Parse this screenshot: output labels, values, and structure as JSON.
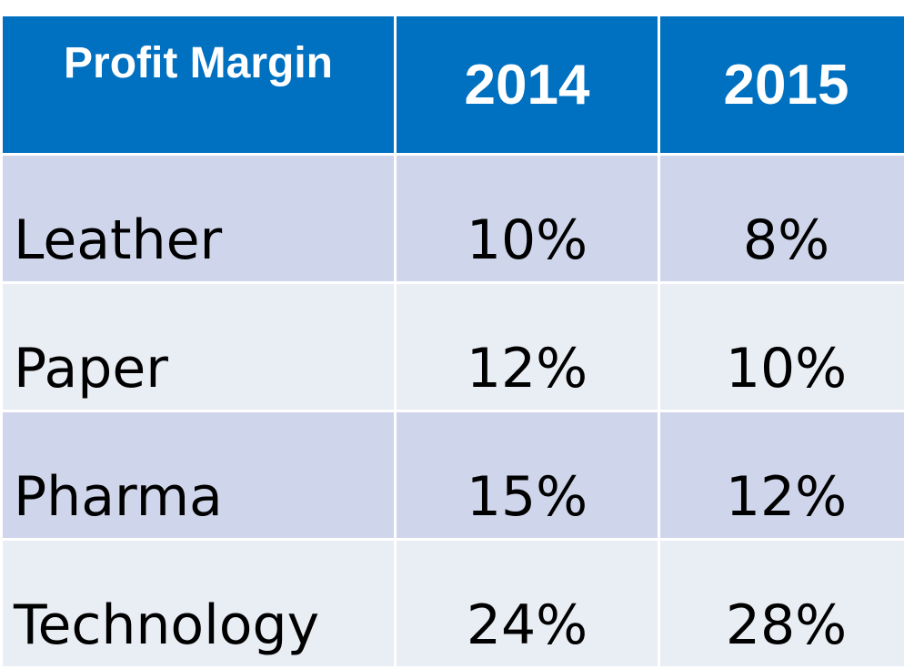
{
  "table": {
    "headers": [
      "Profit Margin",
      "2014",
      "2015"
    ],
    "rows": [
      {
        "label": "Leather",
        "y2014": "10%",
        "y2015": "8%"
      },
      {
        "label": "Paper",
        "y2014": "12%",
        "y2015": "10%"
      },
      {
        "label": "Pharma",
        "y2014": "15%",
        "y2015": "12%"
      },
      {
        "label": "Technology",
        "y2014": "24%",
        "y2015": "28%"
      }
    ]
  },
  "colors": {
    "header_bg": "#0070c0",
    "row_odd_bg": "#cfd5ea",
    "row_even_bg": "#e9edf4",
    "header_text": "#ffffff"
  }
}
